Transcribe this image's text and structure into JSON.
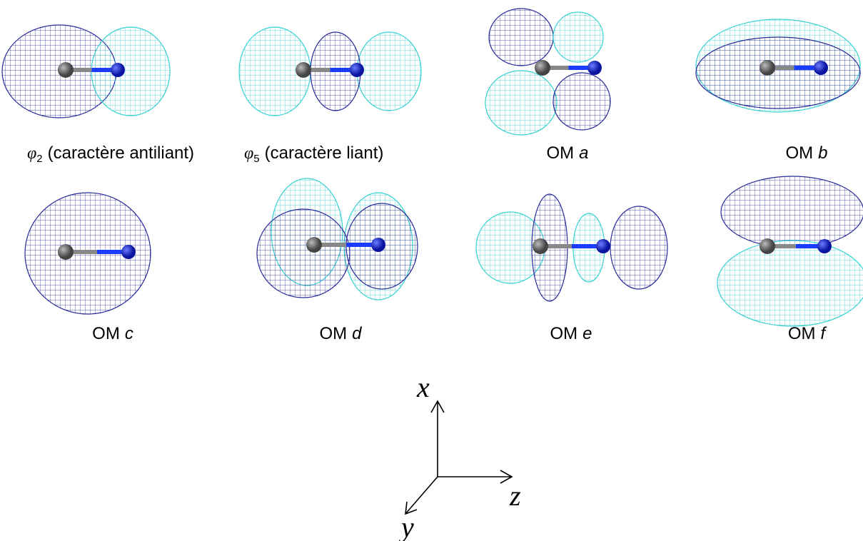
{
  "captions": [
    {
      "symbol": "φ",
      "subscript": "2",
      "text": "(caractère antiliant)"
    },
    {
      "symbol": "φ",
      "subscript": "5",
      "text": "(caractère liant)"
    },
    {
      "prefix": "OM",
      "letter": "a"
    },
    {
      "prefix": "OM",
      "letter": "b"
    },
    {
      "prefix": "OM",
      "letter": "c"
    },
    {
      "prefix": "OM",
      "letter": "d"
    },
    {
      "prefix": "OM",
      "letter": "e"
    },
    {
      "prefix": "OM",
      "letter": "f"
    }
  ],
  "axes": {
    "x": "x",
    "y": "y",
    "z": "z"
  }
}
